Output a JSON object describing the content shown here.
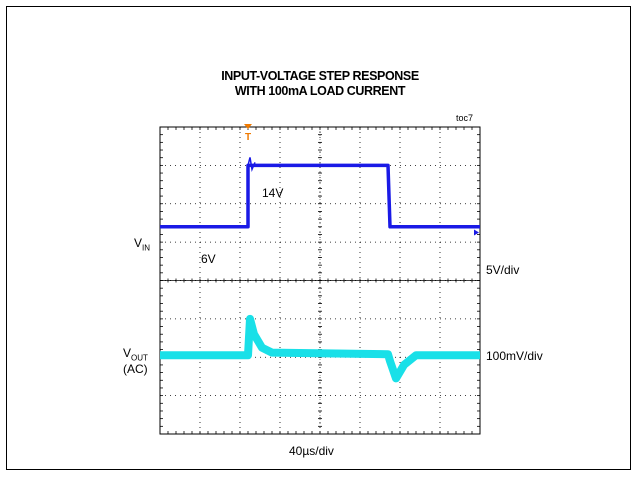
{
  "chart": {
    "title_line1": "INPUT-VOLTAGE STEP RESPONSE",
    "title_line2": "WITH 100mA LOAD CURRENT",
    "figure_id": "toc7",
    "trigger_marker": "T",
    "colors": {
      "vin": "#1a1ae6",
      "vout": "#19e0e8",
      "trigger": "#f07a00",
      "grid": "#000000"
    }
  },
  "chart_data": {
    "type": "line",
    "title": "INPUT-VOLTAGE STEP RESPONSE WITH 100mA LOAD CURRENT",
    "x_scale_label": "40µs/div",
    "grid": {
      "x_divisions": 8,
      "y_divisions": 8,
      "dotted": true
    },
    "series": [
      {
        "name": "V_IN",
        "label_main": "V",
        "label_sub": "IN",
        "scale_label": "5V/div",
        "annotations": [
          {
            "text": "6V"
          },
          {
            "text": "14V"
          }
        ],
        "x_div": [
          0,
          2.2,
          2.2,
          5.7,
          5.75,
          8
        ],
        "y_div": [
          1.4,
          1.4,
          3.0,
          3.0,
          1.4,
          1.4
        ],
        "ground_div": 1.25
      },
      {
        "name": "V_OUT (AC)",
        "label_main": "V",
        "label_sub": "OUT",
        "label_extra": "(AC)",
        "scale_label": "100mV/div",
        "x_div": [
          0,
          2.2,
          2.25,
          2.35,
          2.55,
          2.8,
          5.7,
          5.75,
          5.9,
          6.1,
          6.4,
          8
        ],
        "y_div": [
          -1.95,
          -1.95,
          -1.0,
          -1.4,
          -1.75,
          -1.88,
          -1.92,
          -2.1,
          -2.55,
          -2.2,
          -1.95,
          -1.95
        ]
      }
    ]
  }
}
